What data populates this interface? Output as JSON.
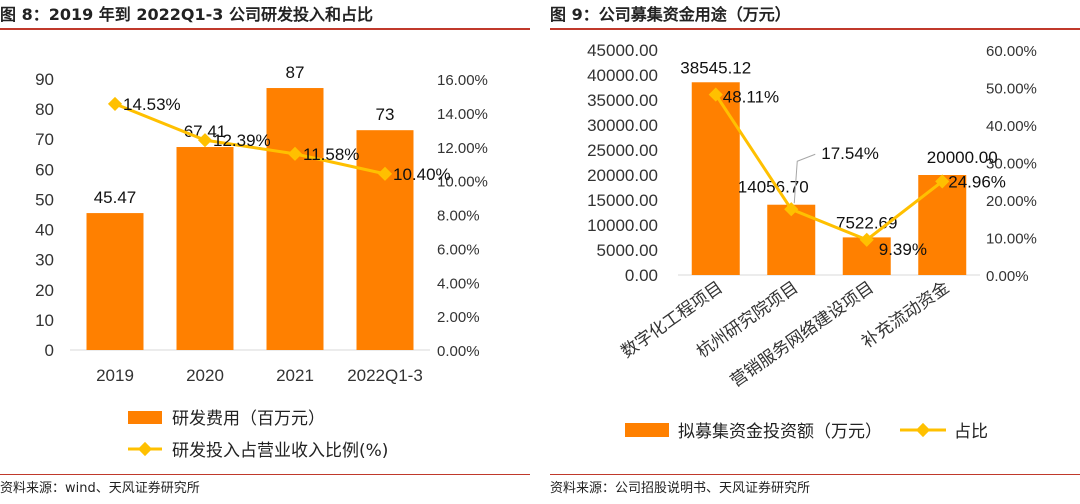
{
  "left": {
    "title": "图 8：2019 年到 2022Q1-3 公司研发投入和占比",
    "source": "资料来源：wind、天风证券研究所"
  },
  "right": {
    "title": "图 9：公司募集资金用途（万元）",
    "source": "资料来源：公司招股说明书、天风证券研究所"
  },
  "colors": {
    "bar": "#ff8000",
    "line": "#ffc000",
    "rule": "#c0392b"
  },
  "chart_data": [
    {
      "type": "bar",
      "title": "图 8：2019 年到 2022Q1-3 公司研发投入和占比",
      "categories": [
        "2019",
        "2020",
        "2021",
        "2022Q1-3"
      ],
      "series": [
        {
          "name": "研发费用（百万元）",
          "kind": "bar",
          "axis": "left",
          "values": [
            45.47,
            67.41,
            87,
            73
          ],
          "labels": [
            "45.47",
            "67.41",
            "87",
            "73"
          ]
        },
        {
          "name": "研发投入占营业收入比例(%)",
          "kind": "line",
          "axis": "right",
          "values": [
            14.53,
            12.39,
            11.58,
            10.4
          ],
          "labels": [
            "14.53%",
            "12.39%",
            "11.58%",
            "10.40%"
          ]
        }
      ],
      "yleft": {
        "min": 0,
        "max": 90,
        "ticks": [
          "0",
          "10",
          "20",
          "30",
          "40",
          "50",
          "60",
          "70",
          "80",
          "90"
        ]
      },
      "yright": {
        "min": 0,
        "max": 16,
        "ticks": [
          "0.00%",
          "2.00%",
          "4.00%",
          "6.00%",
          "8.00%",
          "10.00%",
          "12.00%",
          "14.00%",
          "16.00%"
        ]
      },
      "legend": "bottom"
    },
    {
      "type": "bar",
      "title": "图 9：公司募集资金用途（万元）",
      "categories": [
        "数字化工程项目",
        "杭州研究院项目",
        "营销服务网络建设项目",
        "补充流动资金"
      ],
      "series": [
        {
          "name": "拟募集资金投资额（万元）",
          "kind": "bar",
          "axis": "left",
          "values": [
            38545.12,
            14056.7,
            7522.69,
            20000.0
          ],
          "labels": [
            "38545.12",
            "14056.70",
            "7522.69",
            "20000.00"
          ]
        },
        {
          "name": "占比",
          "kind": "line",
          "axis": "right",
          "values": [
            48.11,
            17.54,
            9.39,
            24.96
          ],
          "labels": [
            "48.11%",
            "17.54%",
            "9.39%",
            "24.96%"
          ]
        }
      ],
      "yleft": {
        "min": 0,
        "max": 45000,
        "ticks": [
          "0.00",
          "5000.00",
          "10000.00",
          "15000.00",
          "20000.00",
          "25000.00",
          "30000.00",
          "35000.00",
          "40000.00",
          "45000.00"
        ]
      },
      "yright": {
        "min": 0,
        "max": 60,
        "ticks": [
          "0.00%",
          "10.00%",
          "20.00%",
          "30.00%",
          "40.00%",
          "50.00%",
          "60.00%"
        ]
      },
      "legend": "bottom"
    }
  ]
}
